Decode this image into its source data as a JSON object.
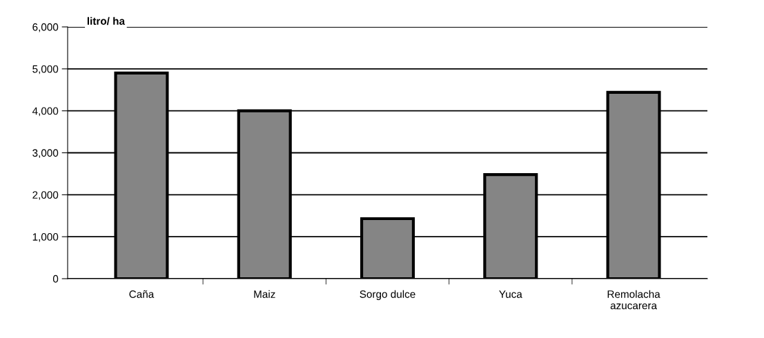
{
  "chart_data": {
    "type": "bar",
    "ylabel": "litro/ ha",
    "categories": [
      "Caña",
      "Maiz",
      "Sorgo dulce",
      "Yuca",
      "Remolacha\nazucarera"
    ],
    "values": [
      4900,
      4000,
      1430,
      2480,
      4440
    ],
    "color": "#858585",
    "ylim": [
      0,
      6000
    ],
    "yticks": [
      {
        "value": 0,
        "label": "0"
      },
      {
        "value": 1000,
        "label": "1,000"
      },
      {
        "value": 2000,
        "label": "2,000"
      },
      {
        "value": 3000,
        "label": "3,000"
      },
      {
        "value": 4000,
        "label": "4,000"
      },
      {
        "value": 5000,
        "label": "5,000"
      },
      {
        "value": 6000,
        "label": "6,000"
      }
    ],
    "grid": "y"
  }
}
